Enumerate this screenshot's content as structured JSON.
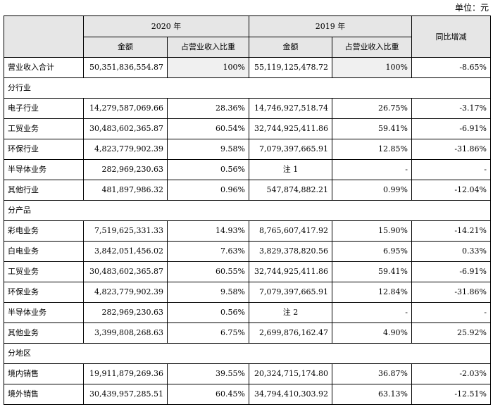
{
  "unit_label": "单位：元",
  "header": {
    "year_2020": "2020 年",
    "year_2019": "2019 年",
    "yoy": "同比增减",
    "amount": "金额",
    "share": "占营业收入比重"
  },
  "total": {
    "label": "营业收入合计",
    "amount_2020": "50,351,836,554.87",
    "share_2020": "100%",
    "amount_2019": "55,119,125,478.72",
    "share_2019": "100%",
    "yoy": "-8.65%"
  },
  "sections": [
    {
      "title": "分行业",
      "rows": [
        {
          "label": "电子行业",
          "amount_2020": "14,279,587,069.66",
          "share_2020": "28.36%",
          "amount_2019": "14,746,927,518.74",
          "share_2019": "26.75%",
          "yoy": "-3.17%"
        },
        {
          "label": "工贸业务",
          "amount_2020": "30,483,602,365.87",
          "share_2020": "60.54%",
          "amount_2019": "32,744,925,411.86",
          "share_2019": "59.41%",
          "yoy": "-6.91%"
        },
        {
          "label": "环保行业",
          "amount_2020": "4,823,779,902.39",
          "share_2020": "9.58%",
          "amount_2019": "7,079,397,665.91",
          "share_2019": "12.85%",
          "yoy": "-31.86%"
        },
        {
          "label": "半导体业务",
          "amount_2020": "282,969,230.63",
          "share_2020": "0.56%",
          "amount_2019": "注 1",
          "share_2019": "-",
          "yoy": "-"
        },
        {
          "label": "其他行业",
          "amount_2020": "481,897,986.32",
          "share_2020": "0.96%",
          "amount_2019": "547,874,882.21",
          "share_2019": "0.99%",
          "yoy": "-12.04%"
        }
      ]
    },
    {
      "title": "分产品",
      "rows": [
        {
          "label": "彩电业务",
          "amount_2020": "7,519,625,331.33",
          "share_2020": "14.93%",
          "amount_2019": "8,765,607,417.92",
          "share_2019": "15.90%",
          "yoy": "-14.21%"
        },
        {
          "label": "白电业务",
          "amount_2020": "3,842,051,456.02",
          "share_2020": "7.63%",
          "amount_2019": "3,829,378,820.56",
          "share_2019": "6.95%",
          "yoy": "0.33%"
        },
        {
          "label": "工贸业务",
          "amount_2020": "30,483,602,365.87",
          "share_2020": "60.55%",
          "amount_2019": "32,744,925,411.86",
          "share_2019": "59.41%",
          "yoy": "-6.91%"
        },
        {
          "label": "环保业务",
          "amount_2020": "4,823,779,902.39",
          "share_2020": "9.58%",
          "amount_2019": "7,079,397,665.91",
          "share_2019": "12.84%",
          "yoy": "-31.86%"
        },
        {
          "label": "半导体业务",
          "amount_2020": "282,969,230.63",
          "share_2020": "0.56%",
          "amount_2019": "注 2",
          "share_2019": "-",
          "yoy": "-"
        },
        {
          "label": "其他业务",
          "amount_2020": "3,399,808,268.63",
          "share_2020": "6.75%",
          "amount_2019": "2,699,876,162.47",
          "share_2019": "4.90%",
          "yoy": "25.92%"
        }
      ]
    },
    {
      "title": "分地区",
      "rows": [
        {
          "label": "境内销售",
          "amount_2020": "19,911,879,269.36",
          "share_2020": "39.55%",
          "amount_2019": "20,324,715,174.80",
          "share_2019": "36.87%",
          "yoy": "-2.03%"
        },
        {
          "label": "境外销售",
          "amount_2020": "30,439,957,285.51",
          "share_2020": "60.45%",
          "amount_2019": "34,794,410,303.92",
          "share_2019": "63.13%",
          "yoy": "-12.51%"
        }
      ]
    }
  ]
}
